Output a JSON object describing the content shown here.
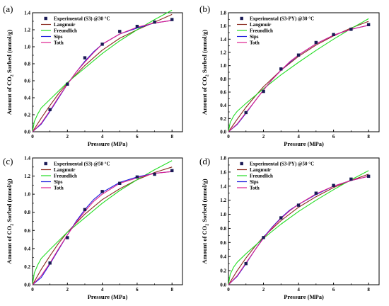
{
  "chart_data": [
    {
      "type": "line",
      "panel_label": "(a)",
      "xlabel": "Pressure (MPa)",
      "ylabel_parts": [
        "Amount of CO",
        "2",
        " Sorbed (mmol/g)"
      ],
      "xlim": [
        0,
        8.6
      ],
      "ylim": [
        0,
        1.4
      ],
      "xticks": [
        "0",
        "2",
        "4",
        "6",
        "8"
      ],
      "yticks": [
        "0.0",
        "0.2",
        "0.4",
        "0.6",
        "0.8",
        "1.0",
        "1.2",
        "1.4"
      ],
      "legend_position": "top-left",
      "scatter": {
        "name": "Experimental (S3) @30 °C",
        "x": [
          1,
          2,
          3,
          4,
          5,
          6,
          7,
          8
        ],
        "y": [
          0.26,
          0.56,
          0.87,
          1.03,
          1.18,
          1.24,
          1.29,
          1.32
        ]
      },
      "series": [
        {
          "name": "Langmuir",
          "color": "#8b2a1f",
          "x": [
            0,
            0.5,
            1,
            1.5,
            2,
            3,
            4,
            5,
            6,
            7,
            8
          ],
          "y": [
            0,
            0.16,
            0.31,
            0.45,
            0.57,
            0.78,
            0.96,
            1.1,
            1.2,
            1.29,
            1.38
          ]
        },
        {
          "name": "Freundlich",
          "color": "#22dd22",
          "x": [
            0,
            0.1,
            0.3,
            0.5,
            1,
            2,
            3,
            4,
            5,
            6,
            7,
            8
          ],
          "y": [
            0,
            0.12,
            0.21,
            0.28,
            0.38,
            0.58,
            0.75,
            0.92,
            1.07,
            1.2,
            1.32,
            1.43
          ]
        },
        {
          "name": "Sips",
          "color": "#1f1fdd",
          "x": [
            0,
            0.5,
            1,
            1.5,
            2,
            2.5,
            3,
            3.5,
            4,
            5,
            6,
            7,
            8
          ],
          "y": [
            0,
            0.09,
            0.24,
            0.4,
            0.56,
            0.7,
            0.83,
            0.94,
            1.03,
            1.15,
            1.22,
            1.28,
            1.31
          ]
        },
        {
          "name": "Toth",
          "color": "#dd1f8e",
          "x": [
            0,
            0.5,
            1,
            1.5,
            2,
            2.5,
            3,
            3.5,
            4,
            5,
            6,
            7,
            8
          ],
          "y": [
            0,
            0.1,
            0.25,
            0.41,
            0.56,
            0.7,
            0.82,
            0.93,
            1.03,
            1.15,
            1.23,
            1.28,
            1.31
          ]
        }
      ]
    },
    {
      "type": "line",
      "panel_label": "(b)",
      "xlabel": "Pressure (MPa)",
      "ylabel_parts": [
        "Amount of CO",
        "2",
        " Sorbed (mmol/g)"
      ],
      "xlim": [
        0,
        8.6
      ],
      "ylim": [
        0,
        1.8
      ],
      "xticks": [
        "0",
        "2",
        "4",
        "6",
        "8"
      ],
      "yticks": [
        "0.0",
        "0.2",
        "0.4",
        "0.6",
        "0.8",
        "1.0",
        "1.2",
        "1.4",
        "1.6",
        "1.8"
      ],
      "legend_position": "top-left",
      "scatter": {
        "name": "Experimental (S3-PY) @30 °C",
        "x": [
          1,
          2,
          3,
          4,
          5,
          6,
          7,
          8
        ],
        "y": [
          0.29,
          0.61,
          0.95,
          1.16,
          1.35,
          1.47,
          1.55,
          1.62
        ]
      },
      "series": [
        {
          "name": "Langmuir",
          "color": "#8b2a1f",
          "x": [
            0,
            0.5,
            1,
            1.5,
            2,
            3,
            4,
            5,
            6,
            7,
            8
          ],
          "y": [
            0,
            0.19,
            0.37,
            0.53,
            0.68,
            0.93,
            1.14,
            1.31,
            1.45,
            1.57,
            1.67
          ]
        },
        {
          "name": "Freundlich",
          "color": "#22dd22",
          "x": [
            0,
            0.1,
            0.3,
            0.5,
            1,
            2,
            3,
            4,
            5,
            6,
            7,
            8
          ],
          "y": [
            0,
            0.14,
            0.24,
            0.31,
            0.43,
            0.65,
            0.86,
            1.05,
            1.23,
            1.4,
            1.56,
            1.71
          ]
        },
        {
          "name": "Sips",
          "color": "#1f1fdd",
          "x": [
            0,
            0.5,
            1,
            1.5,
            2,
            2.5,
            3,
            3.5,
            4,
            5,
            6,
            7,
            8
          ],
          "y": [
            0,
            0.11,
            0.28,
            0.46,
            0.63,
            0.79,
            0.93,
            1.05,
            1.16,
            1.33,
            1.46,
            1.55,
            1.61
          ]
        },
        {
          "name": "Toth",
          "color": "#dd1f8e",
          "x": [
            0,
            0.5,
            1,
            1.5,
            2,
            2.5,
            3,
            3.5,
            4,
            5,
            6,
            7,
            8
          ],
          "y": [
            0,
            0.12,
            0.29,
            0.46,
            0.63,
            0.79,
            0.93,
            1.06,
            1.16,
            1.33,
            1.46,
            1.55,
            1.61
          ]
        }
      ]
    },
    {
      "type": "line",
      "panel_label": "(c)",
      "xlabel": "Pressure (MPa)",
      "ylabel_parts": [
        "Amount of CO",
        "2",
        " Sorbed (mmol/g)"
      ],
      "xlim": [
        0,
        8.6
      ],
      "ylim": [
        0,
        1.4
      ],
      "xticks": [
        "0",
        "2",
        "4",
        "6",
        "8"
      ],
      "yticks": [
        "0.0",
        "0.2",
        "0.4",
        "0.6",
        "0.8",
        "1.0",
        "1.2",
        "1.4"
      ],
      "legend_position": "top-left",
      "scatter": {
        "name": "Experimental (S3) @50 °C",
        "x": [
          1,
          2,
          3,
          4,
          5,
          6,
          7,
          8
        ],
        "y": [
          0.24,
          0.52,
          0.83,
          1.03,
          1.12,
          1.19,
          1.22,
          1.26
        ]
      },
      "series": [
        {
          "name": "Langmuir",
          "color": "#8b2a1f",
          "x": [
            0,
            0.5,
            1,
            1.5,
            2,
            3,
            4,
            5,
            6,
            7,
            8
          ],
          "y": [
            0,
            0.17,
            0.32,
            0.46,
            0.58,
            0.78,
            0.94,
            1.06,
            1.16,
            1.24,
            1.3
          ]
        },
        {
          "name": "Freundlich",
          "color": "#22dd22",
          "x": [
            0,
            0.1,
            0.3,
            0.5,
            1,
            2,
            3,
            4,
            5,
            6,
            7,
            8
          ],
          "y": [
            0,
            0.13,
            0.22,
            0.29,
            0.39,
            0.58,
            0.74,
            0.9,
            1.04,
            1.16,
            1.27,
            1.37
          ]
        },
        {
          "name": "Sips",
          "color": "#1f1fdd",
          "x": [
            0,
            0.5,
            1,
            1.5,
            2,
            2.5,
            3,
            3.5,
            4,
            5,
            6,
            7,
            8
          ],
          "y": [
            0,
            0.08,
            0.23,
            0.39,
            0.55,
            0.7,
            0.83,
            0.94,
            1.02,
            1.13,
            1.19,
            1.23,
            1.25
          ]
        },
        {
          "name": "Toth",
          "color": "#dd1f8e",
          "x": [
            0,
            0.5,
            1,
            1.5,
            2,
            2.5,
            3,
            3.5,
            4,
            5,
            6,
            7,
            8
          ],
          "y": [
            0,
            0.1,
            0.24,
            0.4,
            0.55,
            0.69,
            0.81,
            0.92,
            1.0,
            1.12,
            1.18,
            1.23,
            1.25
          ]
        }
      ]
    },
    {
      "type": "line",
      "panel_label": "(d)",
      "xlabel": "Pressure (MPa)",
      "ylabel_parts": [
        "Amount of CO",
        "2",
        " Sorbed (mmol/g)"
      ],
      "xlim": [
        0,
        8.6
      ],
      "ylim": [
        0,
        1.8
      ],
      "xticks": [
        "0",
        "2",
        "4",
        "6",
        "8"
      ],
      "yticks": [
        "0.0",
        "0.2",
        "0.4",
        "0.6",
        "0.8",
        "1.0",
        "1.2",
        "1.4",
        "1.6",
        "1.8"
      ],
      "legend_position": "top-left",
      "scatter": {
        "name": "Experimental (S3-PY) @50 °C",
        "x": [
          1,
          2,
          3,
          4,
          5,
          6,
          7,
          8
        ],
        "y": [
          0.3,
          0.67,
          0.95,
          1.13,
          1.3,
          1.41,
          1.5,
          1.54
        ]
      },
      "series": [
        {
          "name": "Langmuir",
          "color": "#8b2a1f",
          "x": [
            0,
            0.5,
            1,
            1.5,
            2,
            3,
            4,
            5,
            6,
            7,
            8
          ],
          "y": [
            0,
            0.2,
            0.38,
            0.54,
            0.68,
            0.91,
            1.1,
            1.25,
            1.38,
            1.48,
            1.57
          ]
        },
        {
          "name": "Freundlich",
          "color": "#22dd22",
          "x": [
            0,
            0.1,
            0.3,
            0.5,
            1,
            2,
            3,
            4,
            5,
            6,
            7,
            8
          ],
          "y": [
            0,
            0.15,
            0.25,
            0.32,
            0.44,
            0.66,
            0.86,
            1.04,
            1.2,
            1.35,
            1.49,
            1.62
          ]
        },
        {
          "name": "Sips",
          "color": "#1f1fdd",
          "x": [
            0,
            0.5,
            1,
            1.5,
            2,
            2.5,
            3,
            3.5,
            4,
            5,
            6,
            7,
            8
          ],
          "y": [
            0,
            0.12,
            0.3,
            0.49,
            0.67,
            0.82,
            0.95,
            1.06,
            1.14,
            1.28,
            1.4,
            1.48,
            1.54
          ]
        },
        {
          "name": "Toth",
          "color": "#dd1f8e",
          "x": [
            0,
            0.5,
            1,
            1.5,
            2,
            2.5,
            3,
            3.5,
            4,
            5,
            6,
            7,
            8
          ],
          "y": [
            0,
            0.13,
            0.31,
            0.49,
            0.66,
            0.81,
            0.94,
            1.05,
            1.14,
            1.29,
            1.4,
            1.48,
            1.54
          ]
        }
      ]
    }
  ]
}
